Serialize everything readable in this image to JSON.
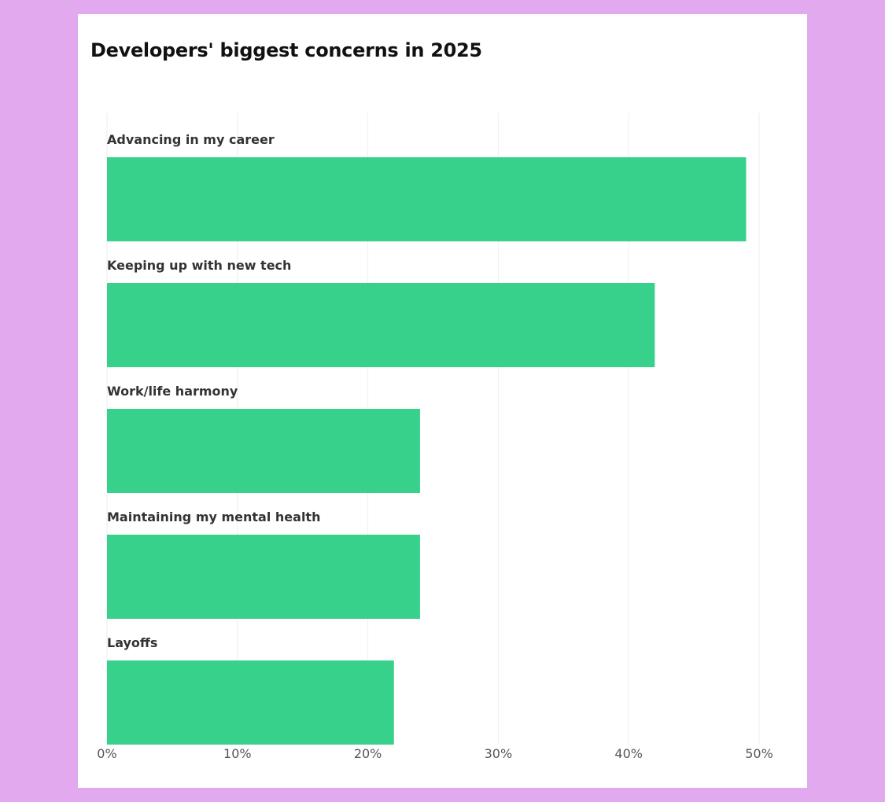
{
  "chart_data": {
    "type": "bar",
    "orientation": "horizontal",
    "title": "Developers' biggest concerns in 2025",
    "categories": [
      "Advancing in my career",
      "Keeping up with new tech",
      "Work/life harmony",
      "Maintaining my mental health",
      "Layoffs"
    ],
    "values": [
      49,
      42,
      24,
      24,
      22
    ],
    "unit": "%",
    "xlim": [
      0,
      50
    ],
    "x_ticks": [
      0,
      10,
      20,
      30,
      40,
      50
    ],
    "x_tick_labels": [
      "0%",
      "10%",
      "20%",
      "30%",
      "40%",
      "50%"
    ],
    "xlabel": "",
    "ylabel": "",
    "grid": "vertical",
    "legend": "none",
    "bar_color": "#37d18b",
    "grid_color": "#eeeeee"
  },
  "colors": {
    "background": "#e2a9ee",
    "card": "#ffffff"
  }
}
